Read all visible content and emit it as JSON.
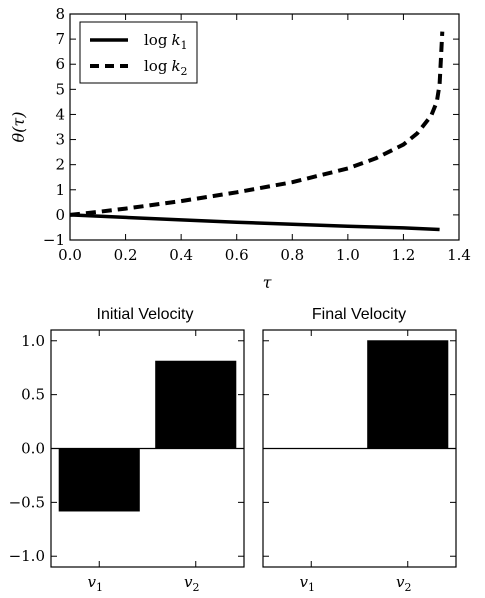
{
  "chart_data": [
    {
      "type": "line",
      "xlabel": "τ",
      "ylabel": "θ(τ)",
      "xlim": [
        0.0,
        1.4
      ],
      "ylim": [
        -1,
        8
      ],
      "xticks": [
        "0.0",
        "0.2",
        "0.4",
        "0.6",
        "0.8",
        "1.0",
        "1.2",
        "1.4"
      ],
      "yticks": [
        "−1",
        "0",
        "1",
        "2",
        "3",
        "4",
        "5",
        "6",
        "7",
        "8"
      ],
      "grid": false,
      "legend_position": "top-left",
      "series": [
        {
          "name": "log k1",
          "legend_text": "log",
          "legend_var": "k",
          "legend_sub": "1",
          "style": "solid",
          "color": "#000000",
          "x": [
            0.0,
            0.2,
            0.4,
            0.6,
            0.8,
            1.0,
            1.2,
            1.33
          ],
          "y": [
            0.0,
            -0.1,
            -0.2,
            -0.29,
            -0.37,
            -0.45,
            -0.52,
            -0.58
          ]
        },
        {
          "name": "log k2",
          "legend_text": "log",
          "legend_var": "k",
          "legend_sub": "2",
          "style": "dashed",
          "color": "#000000",
          "x": [
            0.0,
            0.1,
            0.2,
            0.4,
            0.6,
            0.8,
            1.0,
            1.1,
            1.2,
            1.25,
            1.3,
            1.32,
            1.33,
            1.335,
            1.34
          ],
          "y": [
            0.0,
            0.12,
            0.25,
            0.55,
            0.9,
            1.3,
            1.85,
            2.25,
            2.8,
            3.25,
            3.95,
            4.5,
            5.2,
            6.2,
            7.3
          ]
        }
      ]
    },
    {
      "type": "bar",
      "title": "Initial Velocity",
      "categories": [
        "v1",
        "v2"
      ],
      "category_symbols": [
        {
          "var": "v",
          "sub": "1"
        },
        {
          "var": "v",
          "sub": "2"
        }
      ],
      "values": [
        -0.58,
        0.81
      ],
      "ylim": [
        -1.1,
        1.1
      ],
      "yticks": [
        "1.0",
        "0.5",
        "0.0",
        "−0.5",
        "−1.0"
      ],
      "color": "#000000"
    },
    {
      "type": "bar",
      "title": "Final Velocity",
      "categories": [
        "v1",
        "v2"
      ],
      "category_symbols": [
        {
          "var": "v",
          "sub": "1"
        },
        {
          "var": "v",
          "sub": "2"
        }
      ],
      "values": [
        0.0,
        1.0
      ],
      "ylim": [
        -1.1,
        1.1
      ],
      "color": "#000000"
    }
  ]
}
